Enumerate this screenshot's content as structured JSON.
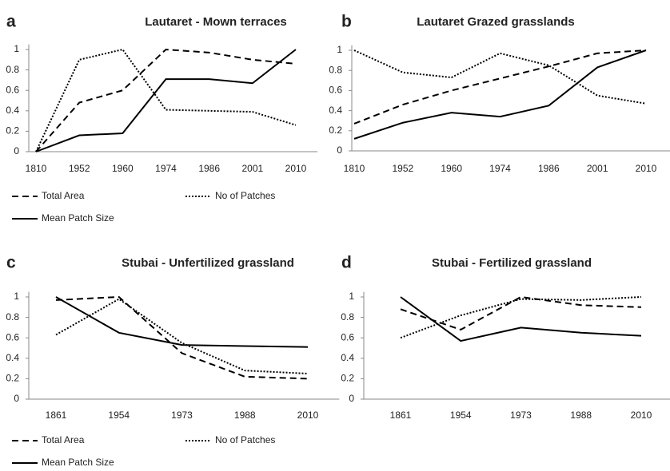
{
  "chart_data": [
    {
      "type": "line",
      "panel": "a",
      "title": "Lautaret - Mown terraces",
      "categories": [
        "1810",
        "1952",
        "1960",
        "1974",
        "1986",
        "2001",
        "2010"
      ],
      "ylim": [
        0,
        1.05
      ],
      "yticks": [
        0,
        0.2,
        0.4,
        0.6,
        0.8,
        1
      ],
      "legend": true,
      "series": [
        {
          "name": "Total Area",
          "color": "#000000",
          "dash": "dashed",
          "values": [
            0,
            0.48,
            0.6,
            1.0,
            0.97,
            0.9,
            0.86
          ]
        },
        {
          "name": "No of Patches",
          "color": "#000000",
          "dash": "dotted",
          "values": [
            0,
            0.9,
            1.0,
            0.41,
            0.4,
            0.39,
            0.26
          ]
        },
        {
          "name": "Mean Patch Size",
          "color": "#000000",
          "dash": "solid",
          "values": [
            0,
            0.16,
            0.18,
            0.71,
            0.71,
            0.67,
            1.0
          ]
        }
      ]
    },
    {
      "type": "line",
      "panel": "b",
      "title": "Lautaret Grazed grasslands",
      "categories": [
        "1810",
        "1952",
        "1960",
        "1974",
        "1986",
        "2001",
        "2010"
      ],
      "ylim": [
        0,
        1.05
      ],
      "yticks": [
        0,
        0.2,
        0.4,
        0.6,
        0.8,
        1
      ],
      "legend": false,
      "series": [
        {
          "color": "#000000",
          "dash": "dashed",
          "values": [
            0.27,
            0.46,
            0.6,
            0.72,
            0.84,
            0.97,
            1.0
          ]
        },
        {
          "color": "#000000",
          "dash": "dotted",
          "values": [
            1.0,
            0.78,
            0.73,
            0.97,
            0.85,
            0.55,
            0.47
          ]
        },
        {
          "color": "#000000",
          "dash": "solid",
          "values": [
            0.12,
            0.28,
            0.38,
            0.34,
            0.45,
            0.83,
            1.0
          ]
        }
      ]
    },
    {
      "type": "line",
      "panel": "c",
      "title": "Stubai - Unfertilized grassland",
      "categories": [
        "1861",
        "1954",
        "1973",
        "1988",
        "2010"
      ],
      "ylim": [
        0,
        1.05
      ],
      "yticks": [
        0,
        0.2,
        0.4,
        0.6,
        0.8,
        1
      ],
      "legend": true,
      "series": [
        {
          "name": "Total Area",
          "color": "#000000",
          "dash": "dashed",
          "values": [
            0.97,
            1.0,
            0.45,
            0.22,
            0.2
          ]
        },
        {
          "name": "No of Patches",
          "color": "#000000",
          "dash": "dotted",
          "values": [
            0.63,
            0.98,
            0.55,
            0.28,
            0.25
          ]
        },
        {
          "name": "Mean Patch Size",
          "color": "#000000",
          "dash": "solid",
          "values": [
            1.0,
            0.65,
            0.53,
            0.52,
            0.51
          ]
        }
      ]
    },
    {
      "type": "line",
      "panel": "d",
      "title": "Stubai - Fertilized grassland",
      "categories": [
        "1861",
        "1954",
        "1973",
        "1988",
        "2010"
      ],
      "ylim": [
        0,
        1.05
      ],
      "yticks": [
        0,
        0.2,
        0.4,
        0.6,
        0.8,
        1
      ],
      "legend": false,
      "series": [
        {
          "color": "#000000",
          "dash": "dashed",
          "values": [
            0.88,
            0.68,
            1.0,
            0.92,
            0.9
          ]
        },
        {
          "color": "#000000",
          "dash": "dotted",
          "values": [
            0.6,
            0.82,
            0.98,
            0.97,
            1.0
          ]
        },
        {
          "color": "#000000",
          "dash": "solid",
          "values": [
            1.0,
            0.57,
            0.7,
            0.65,
            0.62
          ]
        }
      ]
    }
  ]
}
